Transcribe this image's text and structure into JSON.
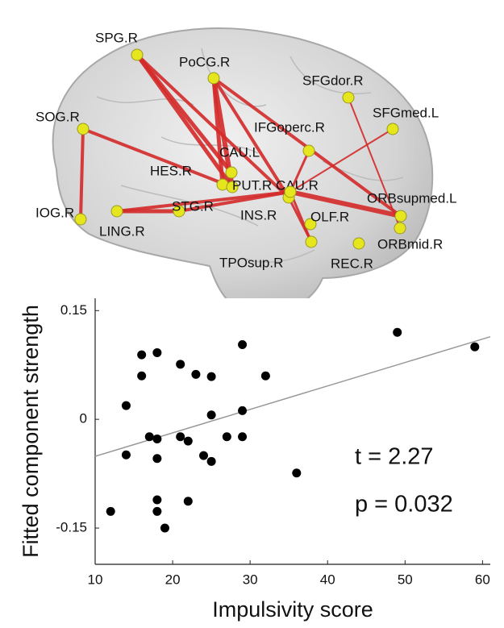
{
  "network": {
    "nodes": [
      {
        "label": "SPG.R"
      },
      {
        "label": "PoCG.R"
      },
      {
        "label": "SFGdor.R"
      },
      {
        "label": "SFGmed.L"
      },
      {
        "label": "SOG.R"
      },
      {
        "label": "IFGoperc.R"
      },
      {
        "label": "CAU.L"
      },
      {
        "label": "HES.R"
      },
      {
        "label": "PUT.R"
      },
      {
        "label": "CAU.R"
      },
      {
        "label": "ORBsupmed.L"
      },
      {
        "label": "IOG.R"
      },
      {
        "label": "LING.R"
      },
      {
        "label": "STG.R"
      },
      {
        "label": "INS.R"
      },
      {
        "label": "OLF.R"
      },
      {
        "label": "ORBmid.R"
      },
      {
        "label": "TPOsup.R"
      },
      {
        "label": "REC.R"
      }
    ]
  },
  "chart_data": {
    "type": "scatter",
    "x_label": "Impulsivity score",
    "y_label": "Fitted component strength",
    "annotations": [
      "t = 2.27",
      "p = 0.032"
    ],
    "series": [
      {
        "color": "#000000",
        "x": [
          12,
          14,
          14,
          16,
          16,
          18,
          17,
          18,
          18,
          18,
          18,
          19,
          21,
          21,
          22,
          22,
          23,
          24,
          25,
          25,
          25,
          27,
          29,
          29,
          29,
          32,
          36,
          49,
          59
        ],
        "values": [
          -0.127,
          -0.049,
          0.019,
          0.089,
          0.06,
          0.092,
          -0.024,
          -0.027,
          -0.054,
          -0.111,
          -0.127,
          -0.15,
          0.076,
          -0.024,
          -0.03,
          -0.113,
          0.062,
          -0.05,
          0.059,
          0.006,
          -0.058,
          -0.024,
          0.103,
          0.012,
          -0.024,
          0.06,
          -0.074,
          0.12,
          0.1
        ]
      }
    ],
    "fit": {
      "color": "#999999",
      "x": [
        10,
        61
      ],
      "values": [
        -0.051,
        0.114
      ]
    },
    "xlim": [
      10,
      61
    ],
    "xticks": [
      10,
      20,
      30,
      40,
      50,
      60
    ],
    "ylim": [
      -0.2,
      0.167
    ],
    "yticks": [
      -0.15,
      0,
      0.15
    ]
  }
}
